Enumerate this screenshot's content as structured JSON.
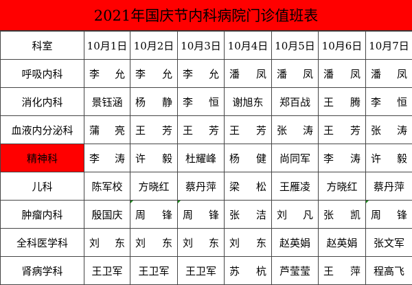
{
  "title": "2021年国庆节内科病院门诊值班表",
  "header": {
    "dept_label": "科室",
    "dates": [
      "10月1日",
      "10月2日",
      "10月3日",
      "10月4日",
      "10月5日",
      "10月6日",
      "10月7日"
    ]
  },
  "highlight_color": "#ff0000",
  "rows": [
    {
      "dept": "呼吸内科",
      "names": [
        "李允",
        "李允",
        "李允",
        "潘凤",
        "潘凤",
        "潘凤",
        "潘凤"
      ]
    },
    {
      "dept": "消化内科",
      "names": [
        "景钰涵",
        "杨静",
        "李恒",
        "谢旭东",
        "郑百战",
        "王腾",
        "李恒"
      ]
    },
    {
      "dept": "血液内分泌科",
      "names": [
        "蒲亮",
        "王芳",
        "王芳",
        "王芳",
        "张涛",
        "王芳",
        "张涛"
      ]
    },
    {
      "dept": "精神科",
      "highlighted": true,
      "names": [
        "李涛",
        "许毅",
        "杜耀峰",
        "杨健",
        "尚同军",
        "李涛",
        "许毅"
      ]
    },
    {
      "dept": "儿科",
      "names": [
        "陈军校",
        "方晓红",
        "蔡丹萍",
        "梁松",
        "王雁凌",
        "方晓红",
        "蔡丹萍"
      ]
    },
    {
      "dept": "肿瘤内科",
      "names": [
        "殷国庆",
        "周锋",
        "周锋",
        "张洁",
        "刘凡",
        "张凯",
        "周锋"
      ],
      "markers": [
        1,
        2,
        6
      ]
    },
    {
      "dept": "全科医学科",
      "names": [
        "刘东",
        "刘东",
        "刘东",
        "刘东",
        "赵英娟",
        "赵英娟",
        "张文军"
      ]
    },
    {
      "dept": "肾病学科",
      "names": [
        "王卫军",
        "王卫军",
        "王卫军",
        "苏杭",
        "芦莹莹",
        "王萍",
        "程高飞"
      ]
    }
  ]
}
